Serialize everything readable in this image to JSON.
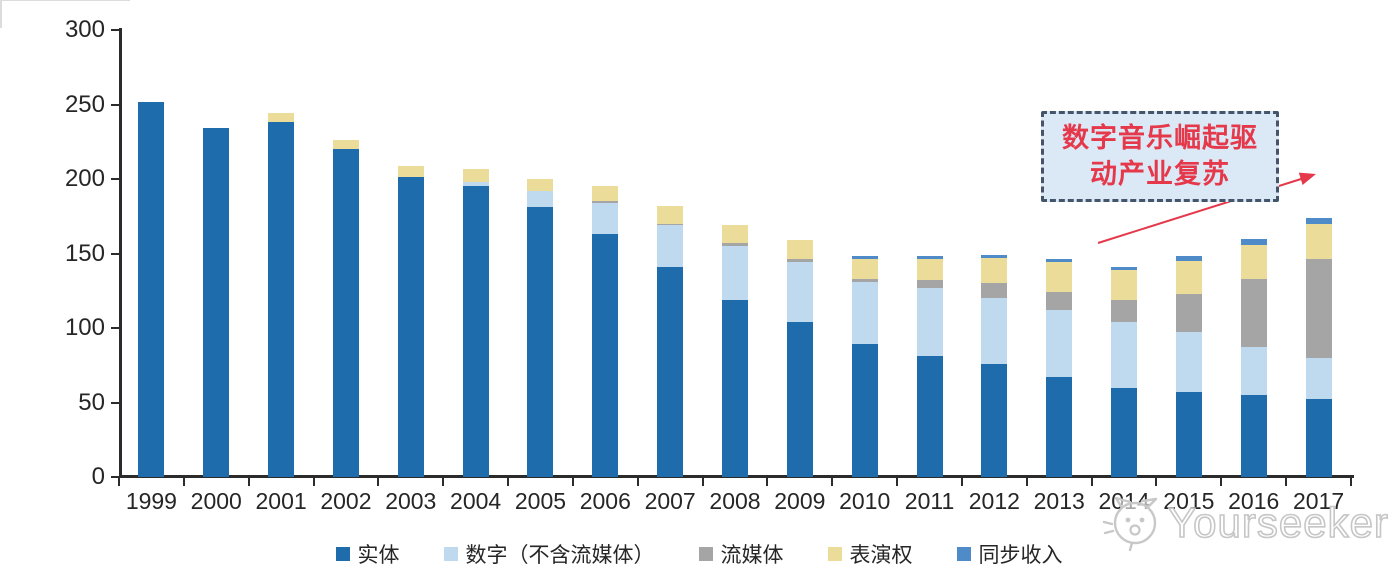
{
  "chart_data": {
    "type": "bar",
    "stacked": true,
    "title": "",
    "categories": [
      "1999",
      "2000",
      "2001",
      "2002",
      "2003",
      "2004",
      "2005",
      "2006",
      "2007",
      "2008",
      "2009",
      "2010",
      "2011",
      "2012",
      "2013",
      "2014",
      "2015",
      "2016",
      "2017"
    ],
    "series": [
      {
        "key": "physical",
        "name": "实体",
        "color": "#1F6CAC",
        "values": [
          252,
          234,
          238,
          220,
          201,
          195,
          181,
          163,
          141,
          119,
          104,
          89,
          81,
          76,
          67,
          60,
          57,
          55,
          52
        ]
      },
      {
        "key": "digital-ex-streaming",
        "name": "数字（不含流媒体）",
        "color": "#BFD9EF",
        "values": [
          0,
          0,
          0,
          0,
          0,
          3,
          11,
          21,
          28,
          36,
          40,
          42,
          46,
          44,
          45,
          44,
          40,
          32,
          28
        ]
      },
      {
        "key": "streaming",
        "name": "流媒体",
        "color": "#A5A5A5",
        "values": [
          0,
          0,
          0,
          0,
          0,
          0,
          0,
          1,
          1,
          2,
          2,
          2,
          5,
          10,
          12,
          15,
          26,
          46,
          66
        ]
      },
      {
        "key": "performance-rights",
        "name": "表演权",
        "color": "#EBDC99",
        "values": [
          0,
          0,
          6,
          6,
          8,
          9,
          8,
          10,
          12,
          12,
          13,
          13,
          14,
          17,
          20,
          20,
          22,
          23,
          24
        ]
      },
      {
        "key": "sync-revenue",
        "name": "同步收入",
        "color": "#4E8BC8",
        "values": [
          0,
          0,
          0,
          0,
          0,
          0,
          0,
          0,
          0,
          0,
          0,
          2,
          2,
          2,
          2,
          2,
          3,
          4,
          4
        ]
      }
    ],
    "ylim": [
      0,
      300
    ],
    "y_ticks": [
      0,
      50,
      100,
      150,
      200,
      250,
      300
    ],
    "grid": false,
    "legend_position": "bottom-center"
  },
  "annotation": {
    "line1": "数字音乐崛起驱",
    "line2": "动产业复苏",
    "text_color": "#E5394B",
    "box_border_color": "#44546A",
    "box_fill_color": "#DBE9F6",
    "arrow_color": "#E5394B"
  },
  "watermark": {
    "text": "Yourseeker",
    "icon": "cat-logo-icon",
    "color": "#C6C6C6"
  },
  "axis_color": "#2B2B2B",
  "label_color": "#262626"
}
